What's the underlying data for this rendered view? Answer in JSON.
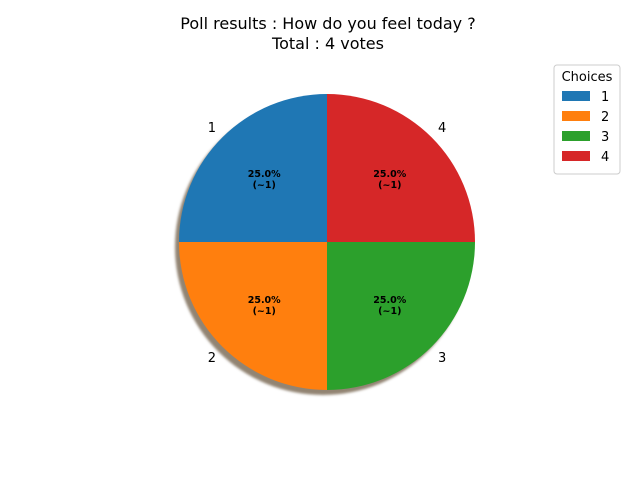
{
  "chart_data": {
    "type": "pie",
    "title_lines": [
      "Poll results : How do you feel today ?",
      "Total : 4 votes"
    ],
    "categories": [
      "1",
      "2",
      "3",
      "4"
    ],
    "values": [
      1,
      1,
      1,
      1
    ],
    "percent_labels": [
      "25.0%",
      "25.0%",
      "25.0%",
      "25.0%"
    ],
    "count_labels": [
      "(~1)",
      "(~1)",
      "(~1)",
      "(~1)"
    ],
    "colors": [
      "#1f77b4",
      "#ff7f0e",
      "#2ca02c",
      "#d62728"
    ],
    "shadow": true,
    "start_angle_deg": 90,
    "direction": "counterclockwise",
    "legend": {
      "title": "Choices",
      "placement": "top-right",
      "entries": [
        "1",
        "2",
        "3",
        "4"
      ]
    }
  }
}
